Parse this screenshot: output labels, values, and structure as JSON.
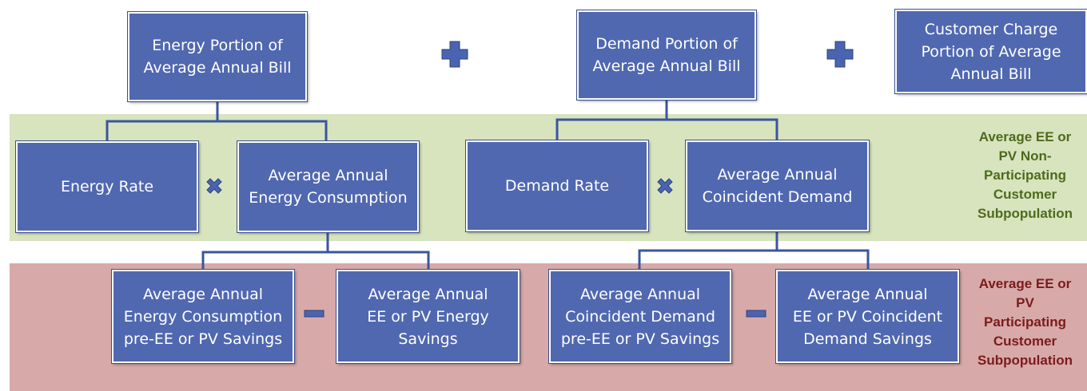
{
  "nodes": [
    {
      "lines": [
        "Energy Portion of",
        "Average Annual Bill"
      ]
    },
    {
      "lines": [
        "Demand Portion of",
        "Average Annual Bill"
      ]
    },
    {
      "lines": [
        "Customer Charge",
        "Portion of Average",
        "Annual Bill"
      ]
    },
    {
      "lines": [
        "Energy Rate"
      ]
    },
    {
      "lines": [
        "Average Annual",
        "Energy Consumption"
      ]
    },
    {
      "lines": [
        "Demand Rate"
      ]
    },
    {
      "lines": [
        "Average Annual",
        "Coincident Demand"
      ]
    },
    {
      "lines": [
        "Average Annual",
        "Energy Consumption",
        "pre-EE or PV Savings"
      ]
    },
    {
      "lines": [
        "Average Annual",
        "EE or PV Energy",
        "Savings"
      ]
    },
    {
      "lines": [
        "Average Annual",
        "Coincident Demand",
        "pre-EE or PV Savings"
      ]
    },
    {
      "lines": [
        "Average Annual",
        "EE or PV Coincident",
        "Demand Savings"
      ]
    }
  ],
  "bands": [
    {
      "lines": [
        "Average EE or",
        "PV Non-",
        "Participating",
        "Customer",
        "Subpopulation"
      ]
    },
    {
      "lines": [
        "Average EE or",
        "PV",
        "Participating",
        "Customer",
        "Subpopulation"
      ]
    }
  ]
}
